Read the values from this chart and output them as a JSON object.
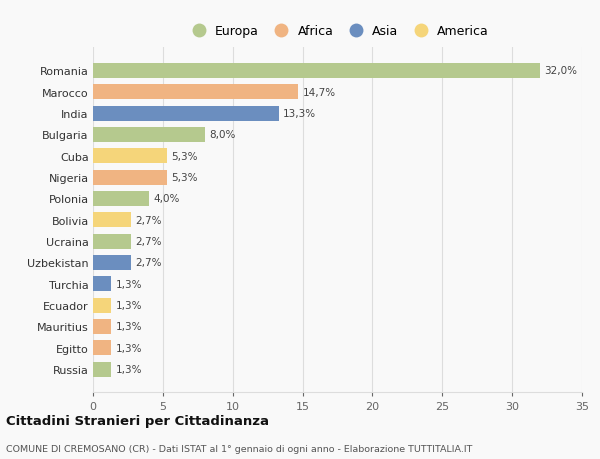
{
  "countries": [
    "Romania",
    "Marocco",
    "India",
    "Bulgaria",
    "Cuba",
    "Nigeria",
    "Polonia",
    "Bolivia",
    "Ucraina",
    "Uzbekistan",
    "Turchia",
    "Ecuador",
    "Mauritius",
    "Egitto",
    "Russia"
  ],
  "values": [
    32.0,
    14.7,
    13.3,
    8.0,
    5.3,
    5.3,
    4.0,
    2.7,
    2.7,
    2.7,
    1.3,
    1.3,
    1.3,
    1.3,
    1.3
  ],
  "labels": [
    "32,0%",
    "14,7%",
    "13,3%",
    "8,0%",
    "5,3%",
    "5,3%",
    "4,0%",
    "2,7%",
    "2,7%",
    "2,7%",
    "1,3%",
    "1,3%",
    "1,3%",
    "1,3%",
    "1,3%"
  ],
  "continents": [
    "Europa",
    "Africa",
    "Asia",
    "Europa",
    "America",
    "Africa",
    "Europa",
    "America",
    "Europa",
    "Asia",
    "Asia",
    "America",
    "Africa",
    "Africa",
    "Europa"
  ],
  "continent_colors": {
    "Europa": "#b5c98e",
    "Africa": "#f0b482",
    "Asia": "#6b8ebf",
    "America": "#f5d57a"
  },
  "legend_order": [
    "Europa",
    "Africa",
    "Asia",
    "America"
  ],
  "title": "Cittadini Stranieri per Cittadinanza",
  "subtitle": "COMUNE DI CREMOSANO (CR) - Dati ISTAT al 1° gennaio di ogni anno - Elaborazione TUTTITALIA.IT",
  "xlim": [
    0,
    35
  ],
  "xticks": [
    0,
    5,
    10,
    15,
    20,
    25,
    30,
    35
  ],
  "bg_color": "#f9f9f9",
  "grid_color": "#dddddd",
  "bar_height": 0.7
}
